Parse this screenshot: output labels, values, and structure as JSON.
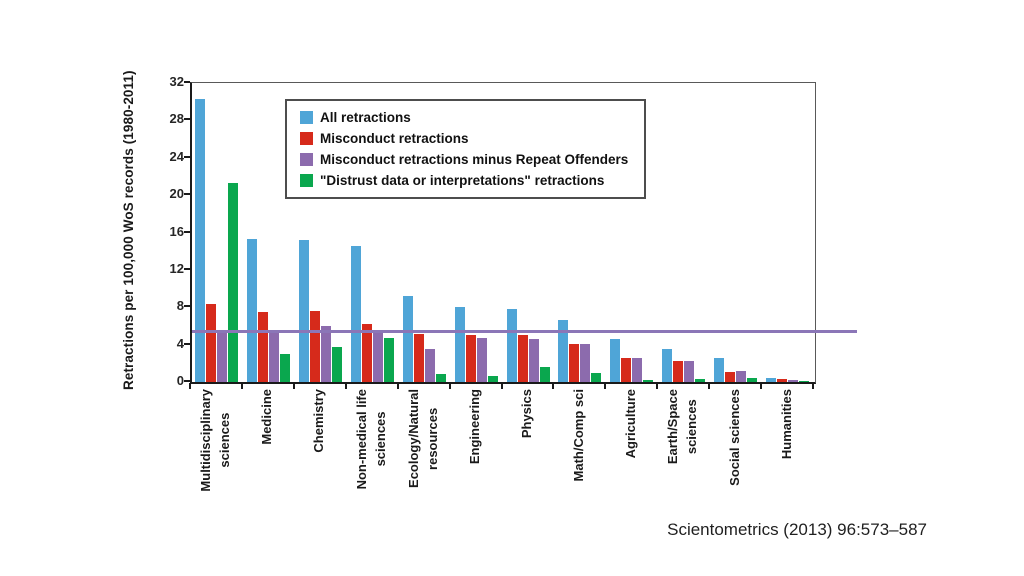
{
  "page": {
    "citation": "Scientometrics (2013) 96:573–587"
  },
  "chart_data": {
    "type": "bar",
    "title": "",
    "xlabel": "",
    "ylabel": "Retractions per 100,000 WoS records (1980-2011)",
    "ylim": [
      0,
      32
    ],
    "yticks": [
      0,
      4,
      8,
      12,
      16,
      20,
      24,
      28,
      32
    ],
    "grid": false,
    "legend_position": "inside-top",
    "categories": [
      [
        "Multidisciplinary",
        "sciences"
      ],
      [
        "Medicine"
      ],
      [
        "Chemistry"
      ],
      [
        "Non-medical life",
        "sciences"
      ],
      [
        "Ecology/Natural",
        "resources"
      ],
      [
        "Engineering"
      ],
      [
        "Physics"
      ],
      [
        "Math/Comp sci"
      ],
      [
        "Agriculture"
      ],
      [
        "Earth/Space",
        "sciences"
      ],
      [
        "Social sciences"
      ],
      [
        "Humanities"
      ]
    ],
    "series": [
      {
        "name": "All retractions",
        "color": "#4FA5D7",
        "values": [
          30.3,
          15.3,
          15.2,
          14.6,
          9.2,
          8.0,
          7.8,
          6.6,
          4.6,
          3.5,
          2.6,
          0.4
        ]
      },
      {
        "name": "Misconduct retractions",
        "color": "#D62A1B",
        "values": [
          8.3,
          7.5,
          7.6,
          6.2,
          5.1,
          5.0,
          5.0,
          4.1,
          2.6,
          2.3,
          1.1,
          0.3
        ]
      },
      {
        "name": "Misconduct retractions minus Repeat Offenders",
        "color": "#8C6BAD",
        "values": [
          5.2,
          5.2,
          6.0,
          5.2,
          3.5,
          4.7,
          4.6,
          4.1,
          2.6,
          2.3,
          1.2,
          0.25
        ]
      },
      {
        "name": "\"Distrust data or interpretations\" retractions",
        "color": "#0AA74E",
        "values": [
          21.3,
          3.0,
          3.7,
          4.7,
          0.9,
          0.6,
          1.6,
          1.0,
          0.25,
          0.3,
          0.4,
          0.1
        ]
      }
    ],
    "reference_line": {
      "value": 5.5,
      "color": "#8B76B7"
    }
  }
}
